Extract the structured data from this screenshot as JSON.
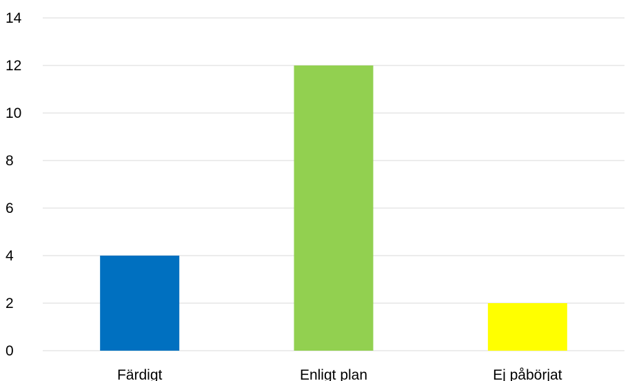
{
  "chart_data": {
    "type": "bar",
    "title": "",
    "xlabel": "",
    "ylabel": "",
    "categories": [
      "Färdigt",
      "Enligt plan",
      "Ej påbörjat"
    ],
    "values": [
      4,
      12,
      2
    ],
    "colors": [
      "#0070c0",
      "#92d050",
      "#ffff00"
    ],
    "ylim": [
      0,
      14
    ],
    "yticks": [
      0,
      2,
      4,
      6,
      8,
      10,
      12,
      14
    ],
    "grid": true,
    "legend": "none",
    "gridline_color": "#d9d9d9"
  }
}
